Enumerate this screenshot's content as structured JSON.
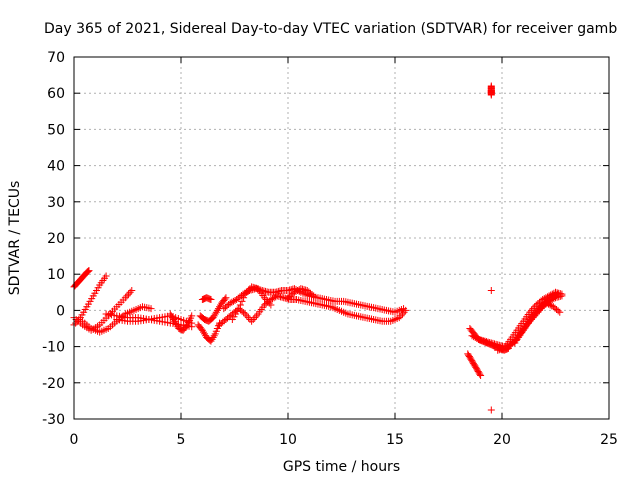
{
  "chart_data": {
    "type": "scatter",
    "title": "Day 365 of 2021, Sidereal Day-to-day VTEC variation (SDTVAR) for receiver gamb",
    "xlabel": "GPS time / hours",
    "ylabel": "SDTVAR / TECUs",
    "xlim": [
      0,
      25
    ],
    "ylim": [
      -30,
      70
    ],
    "xticks": [
      0,
      5,
      10,
      15,
      20,
      25
    ],
    "yticks": [
      -30,
      -20,
      -10,
      0,
      10,
      20,
      30,
      40,
      50,
      60,
      70
    ],
    "grid": true,
    "marker": "+",
    "color": "#ff0000",
    "series": [
      {
        "name": "SDTVAR",
        "segments": [
          {
            "x": [
              0.0,
              0.15,
              0.3,
              0.45,
              0.6,
              0.7
            ],
            "y": [
              6.5,
              7.5,
              8.5,
              9.5,
              10.5,
              11
            ]
          },
          {
            "x": [
              0.0,
              0.3,
              0.6,
              0.9,
              1.2,
              1.5
            ],
            "y": [
              -4.0,
              -2.0,
              1.0,
              4.0,
              7.0,
              9.5
            ]
          },
          {
            "x": [
              0.0,
              0.4,
              0.8,
              1.2,
              1.6,
              2.0,
              2.4,
              2.7
            ],
            "y": [
              -2.0,
              -4.0,
              -5.5,
              -4.0,
              -1.5,
              1.0,
              3.5,
              5.5
            ]
          },
          {
            "x": [
              0.4,
              0.8,
              1.2,
              1.6,
              2.0,
              2.4,
              2.8,
              3.2,
              3.6
            ],
            "y": [
              -3.0,
              -5.0,
              -6.0,
              -5.0,
              -3.0,
              -1.0,
              0.0,
              1.0,
              0.5
            ]
          },
          {
            "x": [
              1.5,
              2.0,
              2.5,
              3.0,
              3.5,
              4.0,
              4.5,
              5.0,
              5.5
            ],
            "y": [
              -1.0,
              -1.5,
              -2.0,
              -2.0,
              -2.5,
              -3.0,
              -3.5,
              -4.0,
              -4.5
            ]
          },
          {
            "x": [
              2.0,
              2.5,
              3.0,
              3.5,
              4.0,
              4.5,
              5.0,
              5.5
            ],
            "y": [
              -2.5,
              -3.0,
              -3.0,
              -2.5,
              -2.0,
              -1.5,
              -2.5,
              -3.5
            ]
          },
          {
            "x": [
              4.5,
              4.7,
              4.9,
              5.1,
              5.3,
              5.5
            ],
            "y": [
              -1.0,
              -3.0,
              -5.0,
              -5.5,
              -4.0,
              -1.5
            ]
          },
          {
            "x": [
              5.8,
              6.0,
              6.2,
              6.4,
              6.6,
              6.8
            ],
            "y": [
              -4.0,
              -5.5,
              -7.5,
              -8.5,
              -6.5,
              -3.5
            ]
          },
          {
            "x": [
              5.9,
              6.1,
              6.3,
              6.5,
              6.7,
              6.9,
              7.1
            ],
            "y": [
              -1.5,
              -2.5,
              -3.0,
              -2.0,
              0.0,
              2.0,
              3.5
            ]
          },
          {
            "x": [
              6.0,
              6.2,
              6.4
            ],
            "y": [
              3.0,
              3.5,
              3.0
            ]
          },
          {
            "x": [
              7.0,
              7.3,
              7.6,
              7.9,
              8.2,
              8.5,
              8.8,
              9.1,
              9.4,
              9.7,
              10.0,
              10.3,
              10.6,
              11.0,
              11.4,
              11.8,
              12.2,
              12.6,
              13.0,
              13.4,
              13.8,
              14.2,
              14.6,
              15.0,
              15.4
            ],
            "y": [
              0.5,
              2.0,
              3.0,
              4.5,
              5.5,
              6.0,
              5.5,
              5.0,
              5.0,
              5.5,
              5.5,
              6.0,
              5.0,
              4.0,
              3.5,
              3.0,
              2.5,
              2.5,
              2.0,
              1.5,
              1.0,
              0.5,
              0.0,
              -0.5,
              0.5
            ]
          },
          {
            "x": [
              6.8,
              7.1,
              7.4,
              7.7,
              8.0,
              8.3,
              8.6,
              8.9,
              9.2,
              9.5,
              9.8,
              10.1,
              10.4,
              10.8,
              11.2,
              11.6,
              12.0,
              12.4,
              12.8,
              13.2,
              13.6,
              14.0,
              14.4,
              14.8,
              15.2,
              15.5
            ],
            "y": [
              -4.0,
              -2.5,
              -1.0,
              0.5,
              -1.0,
              -3.0,
              -1.0,
              1.5,
              3.0,
              4.0,
              3.5,
              3.0,
              3.0,
              2.5,
              2.0,
              1.5,
              1.0,
              0.0,
              -1.0,
              -1.5,
              -2.0,
              -2.5,
              -3.0,
              -3.0,
              -2.0,
              0.0
            ]
          },
          {
            "x": [
              7.4,
              7.7,
              8.0,
              8.3,
              8.6,
              8.9,
              9.2
            ],
            "y": [
              -2.5,
              0.5,
              4.5,
              6.5,
              6.0,
              3.5,
              1.5
            ]
          },
          {
            "x": [
              10.0,
              10.3,
              10.6,
              10.9,
              11.2
            ],
            "y": [
              3.5,
              5.0,
              6.0,
              5.5,
              4.0
            ]
          },
          {
            "x": [
              18.5,
              18.7,
              18.9,
              19.1,
              19.3,
              19.5,
              19.7,
              19.9,
              20.1,
              20.3
            ],
            "y": [
              -5.0,
              -6.5,
              -8.0,
              -8.5,
              -9.0,
              -9.5,
              -10.0,
              -10.5,
              -11.0,
              -10.5
            ]
          },
          {
            "x": [
              18.4,
              18.55,
              18.7,
              18.85,
              19.0
            ],
            "y": [
              -12.0,
              -13.5,
              -15.0,
              -16.5,
              -18.0
            ]
          },
          {
            "x": [
              19.5,
              19.5,
              19.5,
              19.5,
              19.5
            ],
            "y": [
              60.0,
              61.0,
              62.0,
              59.5,
              60.5
            ]
          },
          {
            "x": [
              19.5
            ],
            "y": [
              5.5
            ]
          },
          {
            "x": [
              19.5
            ],
            "y": [
              -27.5
            ]
          },
          {
            "x": [
              18.6,
              18.9,
              19.2,
              19.5,
              19.8,
              20.1,
              20.4,
              20.7,
              21.0,
              21.3,
              21.6,
              21.9,
              22.2,
              22.5,
              22.8
            ],
            "y": [
              -7.0,
              -8.0,
              -8.5,
              -9.0,
              -9.5,
              -10.0,
              -9.5,
              -8.0,
              -5.5,
              -3.0,
              -1.0,
              1.0,
              2.5,
              3.5,
              4.0
            ]
          },
          {
            "x": [
              19.8,
              20.1,
              20.4,
              20.7,
              21.0,
              21.3,
              21.6,
              21.9,
              22.2,
              22.5,
              22.8
            ],
            "y": [
              -11.0,
              -10.5,
              -8.0,
              -5.5,
              -3.0,
              -0.5,
              1.5,
              3.0,
              4.0,
              5.0,
              4.5
            ]
          },
          {
            "x": [
              20.6,
              20.9,
              21.2,
              21.5,
              21.8,
              22.1,
              22.4,
              22.7
            ],
            "y": [
              -9.0,
              -6.0,
              -3.0,
              -1.0,
              1.0,
              2.0,
              1.0,
              -0.5
            ]
          },
          {
            "x": [
              20.2,
              20.5,
              20.8,
              21.1,
              21.4,
              21.7,
              22.0,
              22.3,
              22.6
            ],
            "y": [
              -10.5,
              -9.0,
              -7.0,
              -4.5,
              -2.0,
              0.0,
              2.0,
              3.5,
              4.5
            ]
          }
        ]
      }
    ]
  }
}
